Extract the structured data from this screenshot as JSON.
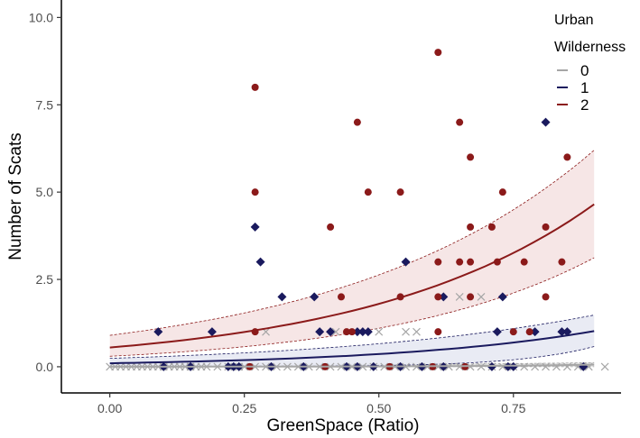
{
  "colors": {
    "level_0": "#a6a6a6",
    "level_1": "#1a1a5e",
    "level_2": "#8b1a1a",
    "ribbon_0": "#d9d9d9",
    "ribbon_1": "#dfe3f0",
    "ribbon_2": "#f2dcdc",
    "axis": "#000000",
    "tick_label": "#4d4d4d"
  },
  "chart_data": {
    "type": "scatter",
    "xlabel": "GreenSpace (Ratio)",
    "ylabel": "Number of Scats",
    "xlim": [
      -0.09,
      0.95
    ],
    "ylim": [
      -0.75,
      10.5
    ],
    "x_ticks": [
      0.0,
      0.25,
      0.5,
      0.75
    ],
    "x_tick_labels": [
      "0.00",
      "0.25",
      "0.50",
      "0.75"
    ],
    "y_ticks": [
      0.0,
      2.5,
      5.0,
      7.5,
      10.0
    ],
    "y_tick_labels": [
      "0.0",
      "2.5",
      "5.0",
      "7.5",
      "10.0"
    ],
    "grid": false,
    "legend": {
      "title_line1": "Urban",
      "title_line2": "Wilderness",
      "placement": "top-right",
      "entries": [
        "0",
        "1",
        "2"
      ]
    },
    "series": [
      {
        "name": "0",
        "marker": "x",
        "fit": {
          "x": [
            0.0,
            0.9
          ],
          "y": [
            0.0,
            0.06
          ]
        },
        "ribbon": {
          "lower": [
            0.0,
            0.0
          ],
          "upper": [
            0.02,
            0.12
          ]
        },
        "points": [
          [
            0.0,
            0
          ],
          [
            0.01,
            0
          ],
          [
            0.02,
            0
          ],
          [
            0.03,
            0
          ],
          [
            0.04,
            0
          ],
          [
            0.05,
            0
          ],
          [
            0.06,
            0
          ],
          [
            0.07,
            0
          ],
          [
            0.08,
            0
          ],
          [
            0.09,
            0
          ],
          [
            0.1,
            0
          ],
          [
            0.11,
            0
          ],
          [
            0.12,
            0
          ],
          [
            0.13,
            0
          ],
          [
            0.14,
            0
          ],
          [
            0.15,
            0
          ],
          [
            0.16,
            0
          ],
          [
            0.17,
            0
          ],
          [
            0.18,
            0
          ],
          [
            0.2,
            0
          ],
          [
            0.22,
            0
          ],
          [
            0.24,
            0
          ],
          [
            0.25,
            0
          ],
          [
            0.27,
            0
          ],
          [
            0.29,
            0
          ],
          [
            0.31,
            0
          ],
          [
            0.33,
            0
          ],
          [
            0.35,
            0
          ],
          [
            0.37,
            0
          ],
          [
            0.39,
            0
          ],
          [
            0.41,
            0
          ],
          [
            0.43,
            0
          ],
          [
            0.45,
            0
          ],
          [
            0.47,
            0
          ],
          [
            0.49,
            0
          ],
          [
            0.51,
            0
          ],
          [
            0.53,
            0
          ],
          [
            0.55,
            0
          ],
          [
            0.57,
            0
          ],
          [
            0.59,
            0
          ],
          [
            0.61,
            0
          ],
          [
            0.63,
            0
          ],
          [
            0.65,
            0
          ],
          [
            0.67,
            0
          ],
          [
            0.69,
            0
          ],
          [
            0.71,
            0
          ],
          [
            0.73,
            0
          ],
          [
            0.75,
            0
          ],
          [
            0.77,
            0
          ],
          [
            0.79,
            0
          ],
          [
            0.81,
            0
          ],
          [
            0.83,
            0
          ],
          [
            0.85,
            0
          ],
          [
            0.87,
            0
          ],
          [
            0.89,
            0
          ],
          [
            0.92,
            0
          ],
          [
            0.29,
            1
          ],
          [
            0.42,
            1
          ],
          [
            0.5,
            1
          ],
          [
            0.55,
            1
          ],
          [
            0.57,
            1
          ],
          [
            0.65,
            2
          ],
          [
            0.69,
            2
          ]
        ]
      },
      {
        "name": "1",
        "marker": "diamond",
        "fit": {
          "x": [
            0.0,
            0.9
          ],
          "y": [
            0.1,
            1.02
          ]
        },
        "ribbon": {
          "lower": [
            0.0,
            0.58
          ],
          "upper": [
            0.24,
            1.48
          ]
        },
        "points": [
          [
            0.09,
            1
          ],
          [
            0.19,
            1
          ],
          [
            0.27,
            4
          ],
          [
            0.28,
            3
          ],
          [
            0.32,
            2
          ],
          [
            0.38,
            2
          ],
          [
            0.39,
            1
          ],
          [
            0.41,
            1
          ],
          [
            0.46,
            1
          ],
          [
            0.47,
            1
          ],
          [
            0.48,
            1
          ],
          [
            0.55,
            3
          ],
          [
            0.62,
            2
          ],
          [
            0.72,
            1
          ],
          [
            0.73,
            2
          ],
          [
            0.79,
            1
          ],
          [
            0.81,
            7
          ],
          [
            0.84,
            1
          ],
          [
            0.85,
            1
          ],
          [
            0.1,
            0
          ],
          [
            0.15,
            0
          ],
          [
            0.22,
            0
          ],
          [
            0.23,
            0
          ],
          [
            0.24,
            0
          ],
          [
            0.3,
            0
          ],
          [
            0.36,
            0
          ],
          [
            0.44,
            0
          ],
          [
            0.46,
            0
          ],
          [
            0.49,
            0
          ],
          [
            0.54,
            0
          ],
          [
            0.58,
            0
          ],
          [
            0.62,
            0
          ],
          [
            0.71,
            0
          ],
          [
            0.74,
            0
          ],
          [
            0.75,
            0
          ],
          [
            0.88,
            0
          ]
        ]
      },
      {
        "name": "2",
        "marker": "circle",
        "fit": {
          "x": [
            0.0,
            0.9
          ],
          "y": [
            0.55,
            4.65
          ]
        },
        "ribbon": {
          "lower": [
            0.3,
            3.12
          ],
          "upper": [
            0.9,
            6.2
          ]
        },
        "points": [
          [
            0.27,
            8
          ],
          [
            0.27,
            5
          ],
          [
            0.27,
            1
          ],
          [
            0.41,
            4
          ],
          [
            0.43,
            2
          ],
          [
            0.44,
            1
          ],
          [
            0.45,
            1
          ],
          [
            0.46,
            7
          ],
          [
            0.48,
            5
          ],
          [
            0.54,
            5
          ],
          [
            0.54,
            2
          ],
          [
            0.61,
            9
          ],
          [
            0.61,
            3
          ],
          [
            0.61,
            2
          ],
          [
            0.61,
            1
          ],
          [
            0.65,
            7
          ],
          [
            0.65,
            3
          ],
          [
            0.67,
            6
          ],
          [
            0.67,
            4
          ],
          [
            0.67,
            3
          ],
          [
            0.67,
            2
          ],
          [
            0.71,
            4
          ],
          [
            0.72,
            3
          ],
          [
            0.73,
            5
          ],
          [
            0.75,
            1
          ],
          [
            0.77,
            3
          ],
          [
            0.78,
            1
          ],
          [
            0.81,
            4
          ],
          [
            0.81,
            2
          ],
          [
            0.84,
            3
          ],
          [
            0.85,
            6
          ],
          [
            0.26,
            0
          ],
          [
            0.4,
            0
          ],
          [
            0.52,
            0
          ],
          [
            0.6,
            0
          ],
          [
            0.66,
            0
          ]
        ]
      }
    ]
  }
}
